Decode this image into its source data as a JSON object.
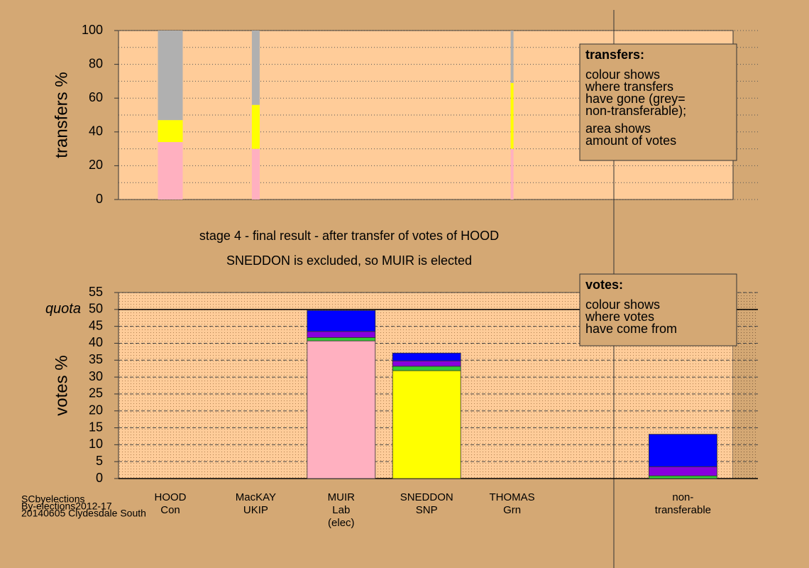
{
  "chart_data": [
    {
      "type": "bar",
      "stacked": true,
      "ylabel": "transfers %",
      "categories": [
        [
          "HOOD",
          "Con"
        ],
        [
          "MacKAY",
          "UKIP"
        ],
        [
          "MUIR",
          "Lab",
          "(elec)"
        ],
        [
          "SNEDDON",
          "SNP"
        ],
        [
          "THOMAS",
          "Grn"
        ],
        null,
        [
          "non-",
          "transferable"
        ]
      ],
      "amounts": [
        35,
        11,
        null,
        null,
        4,
        null,
        null
      ],
      "series": [
        {
          "color": "#ffb0c0",
          "values": [
            34,
            30,
            null,
            null,
            30,
            null,
            null
          ]
        },
        {
          "color": "#ffff00",
          "values": [
            13,
            26,
            null,
            null,
            39,
            null,
            null
          ]
        },
        {
          "color": "#b0b0b0",
          "values": [
            53,
            44,
            null,
            null,
            31,
            null,
            null
          ]
        }
      ],
      "ylim": [
        0,
        100
      ],
      "yticks": [
        0,
        20,
        40,
        60,
        80,
        100
      ],
      "minor_yticks": [
        10,
        30,
        50,
        70,
        90
      ],
      "grid": true,
      "legend_box": {
        "title": "transfers:",
        "lines": [
          "colour shows",
          "where transfers",
          "have gone (grey=",
          "non-transferable);",
          "area shows",
          "amount of votes"
        ]
      }
    },
    {
      "type": "bar",
      "stacked": true,
      "ylabel": "votes %",
      "title": [
        "stage 4 - final result - after transfer of votes of HOOD",
        "SNEDDON is excluded, so MUIR is elected"
      ],
      "categories": [
        [
          "HOOD",
          "Con"
        ],
        [
          "MacKAY",
          "UKIP"
        ],
        [
          "MUIR",
          "Lab",
          "(elec)"
        ],
        [
          "SNEDDON",
          "SNP"
        ],
        [
          "THOMAS",
          "Grn"
        ],
        null,
        [
          "non-",
          "transferable"
        ]
      ],
      "series": [
        {
          "color": "#ffb0c0",
          "values": [
            null,
            null,
            40.7,
            null,
            null,
            null,
            null
          ]
        },
        {
          "color": "#ffff00",
          "values": [
            null,
            null,
            null,
            31.9,
            null,
            null,
            null
          ]
        },
        {
          "color": "#33cc33",
          "values": [
            null,
            null,
            1.0,
            1.3,
            null,
            null,
            0.8
          ]
        },
        {
          "color": "#8800dd",
          "values": [
            null,
            null,
            1.8,
            1.6,
            null,
            null,
            2.7
          ]
        },
        {
          "color": "#0000ff",
          "values": [
            null,
            null,
            6.2,
            2.3,
            null,
            null,
            9.6
          ]
        }
      ],
      "ylim": [
        0,
        55
      ],
      "yticks": [
        0,
        5,
        10,
        15,
        20,
        25,
        30,
        35,
        40,
        45,
        50,
        55
      ],
      "grid": true,
      "quota": {
        "value": 50,
        "label": "quota"
      },
      "legend_box": {
        "title": "votes:",
        "lines": [
          "colour shows",
          "where votes",
          "have come from"
        ]
      }
    }
  ],
  "footer": [
    "SCbyelections",
    "By-elections2012-17",
    "20140605 Clydesdale South"
  ]
}
